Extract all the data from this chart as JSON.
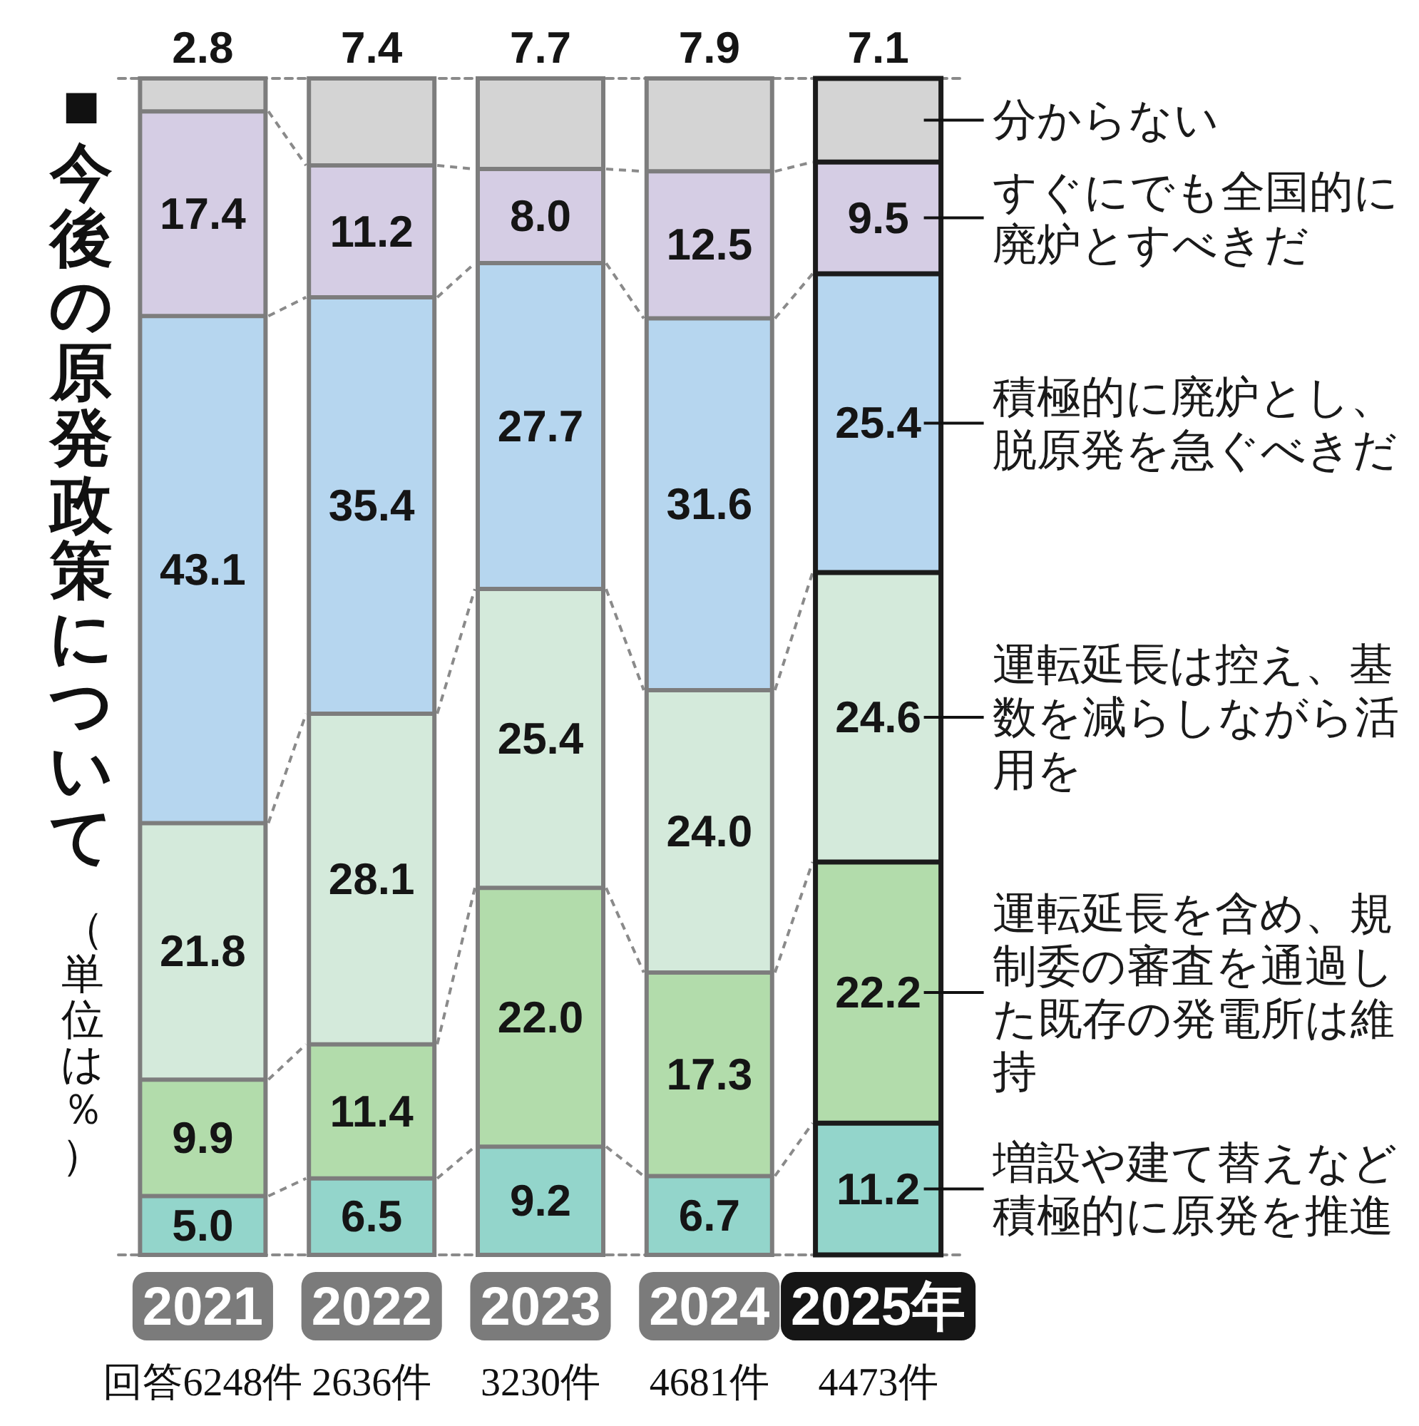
{
  "chart_data": {
    "type": "bar",
    "title": "■今後の原発政策について",
    "subtitle": "（単位は％）",
    "stacked": true,
    "legend": "right",
    "ylim": [
      0,
      100
    ],
    "categories": [
      "2021",
      "2022",
      "2023",
      "2024",
      "2025年"
    ],
    "series": [
      {
        "name": "増設や建て替えなど積極的に原発を推進",
        "color": "#93d5cb",
        "values": [
          5.0,
          6.5,
          9.2,
          6.7,
          11.2
        ],
        "value_labels": [
          "5.0",
          "6.5",
          "9.2",
          "6.7",
          "11.2"
        ]
      },
      {
        "name": "運転延長を含め、規制委の審査を通過した既存の発電所は維持",
        "color": "#b2dcab",
        "values": [
          9.9,
          11.4,
          22.0,
          17.3,
          22.2
        ],
        "value_labels": [
          "9.9",
          "11.4",
          "22.0",
          "17.3",
          "22.2"
        ]
      },
      {
        "name": "運転延長は控え、基数を減らしながら活用を",
        "color": "#d4eadb",
        "values": [
          21.8,
          28.1,
          25.4,
          24.0,
          24.6
        ],
        "value_labels": [
          "21.8",
          "28.1",
          "25.4",
          "24.0",
          "24.6"
        ]
      },
      {
        "name": "積極的に廃炉とし、脱原発を急ぐべきだ",
        "color": "#b6d6ef",
        "values": [
          43.1,
          35.4,
          27.7,
          31.6,
          25.4
        ],
        "value_labels": [
          "43.1",
          "35.4",
          "27.7",
          "31.6",
          "25.4"
        ]
      },
      {
        "name": "すぐにでも全国的に廃炉とすべきだ",
        "color": "#d5cde4",
        "values": [
          17.4,
          11.2,
          8.0,
          12.5,
          9.5
        ],
        "value_labels": [
          "17.4",
          "11.2",
          "8.0",
          "12.5",
          "9.5"
        ]
      },
      {
        "name": "分からない",
        "color": "#d4d4d4",
        "values": [
          2.8,
          7.4,
          7.7,
          7.9,
          7.1
        ],
        "value_labels": [
          "2.8",
          "7.4",
          "7.7",
          "7.9",
          "7.1"
        ]
      }
    ],
    "annotations": [
      "回答6248件",
      "2636件",
      "3230件",
      "4681件",
      "4473件"
    ]
  }
}
